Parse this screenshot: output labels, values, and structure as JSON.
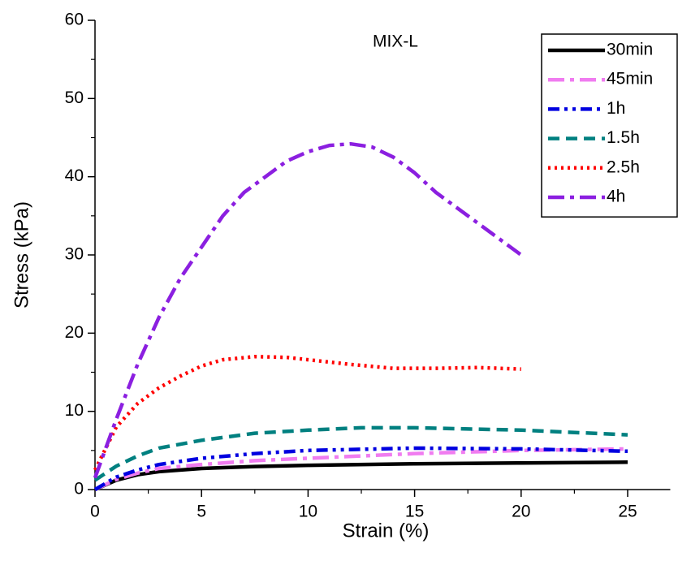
{
  "chart_data": {
    "type": "line",
    "title": "MIX-L",
    "xlabel": "Strain (%)",
    "ylabel": "Stress (kPa)",
    "xlim": [
      0,
      27
    ],
    "ylim": [
      0,
      60
    ],
    "xticks": [
      0,
      5,
      10,
      15,
      20,
      25
    ],
    "yticks": [
      0,
      10,
      20,
      30,
      40,
      50,
      60
    ],
    "legend": "upper right",
    "series": [
      {
        "name": "30min",
        "color": "#000000",
        "style": "solid",
        "x": [
          0,
          1,
          2,
          3,
          5,
          7.5,
          10,
          15,
          20,
          25
        ],
        "values": [
          0,
          1.2,
          1.9,
          2.3,
          2.7,
          2.95,
          3.1,
          3.3,
          3.4,
          3.5
        ]
      },
      {
        "name": "45min",
        "color": "#f07cf0",
        "style": "dashdot",
        "x": [
          0,
          1,
          2,
          3,
          5,
          7.5,
          10,
          15,
          20,
          25
        ],
        "values": [
          0,
          1.3,
          2.1,
          2.7,
          3.2,
          3.7,
          4.0,
          4.6,
          5.0,
          5.2
        ]
      },
      {
        "name": "1h",
        "color": "#0000e0",
        "style": "dashdotdot",
        "x": [
          0,
          1,
          2,
          3,
          5,
          7.5,
          10,
          15,
          20,
          25
        ],
        "values": [
          0,
          1.6,
          2.5,
          3.2,
          4.0,
          4.6,
          5.0,
          5.3,
          5.2,
          4.9
        ]
      },
      {
        "name": "1.5h",
        "color": "#008080",
        "style": "dash",
        "x": [
          0,
          1,
          2,
          3,
          5,
          7.5,
          10,
          12.5,
          15,
          20,
          25
        ],
        "values": [
          1.2,
          3,
          4.3,
          5.3,
          6.3,
          7.2,
          7.6,
          7.9,
          7.9,
          7.6,
          7.0
        ]
      },
      {
        "name": "2.5h",
        "color": "#ff0000",
        "style": "dot",
        "x": [
          0,
          1,
          2,
          3,
          4,
          5,
          6,
          7.5,
          9,
          10,
          12,
          14,
          16,
          18,
          20
        ],
        "values": [
          2.5,
          8,
          11,
          13,
          14.5,
          15.8,
          16.6,
          17,
          16.9,
          16.6,
          16,
          15.5,
          15.5,
          15.6,
          15.4
        ]
      },
      {
        "name": "4h",
        "color": "#8b1fe0",
        "style": "dashdot",
        "x": [
          0,
          1,
          2,
          3,
          4,
          5,
          6,
          7,
          8,
          9,
          10,
          11,
          12,
          13,
          14,
          15,
          16,
          17,
          18,
          19,
          20
        ],
        "values": [
          1.5,
          9,
          16,
          22,
          27,
          31,
          35,
          38,
          40,
          42,
          43.2,
          44,
          44.2,
          43.8,
          42.5,
          40.5,
          38,
          36,
          34,
          32,
          30
        ]
      }
    ]
  }
}
